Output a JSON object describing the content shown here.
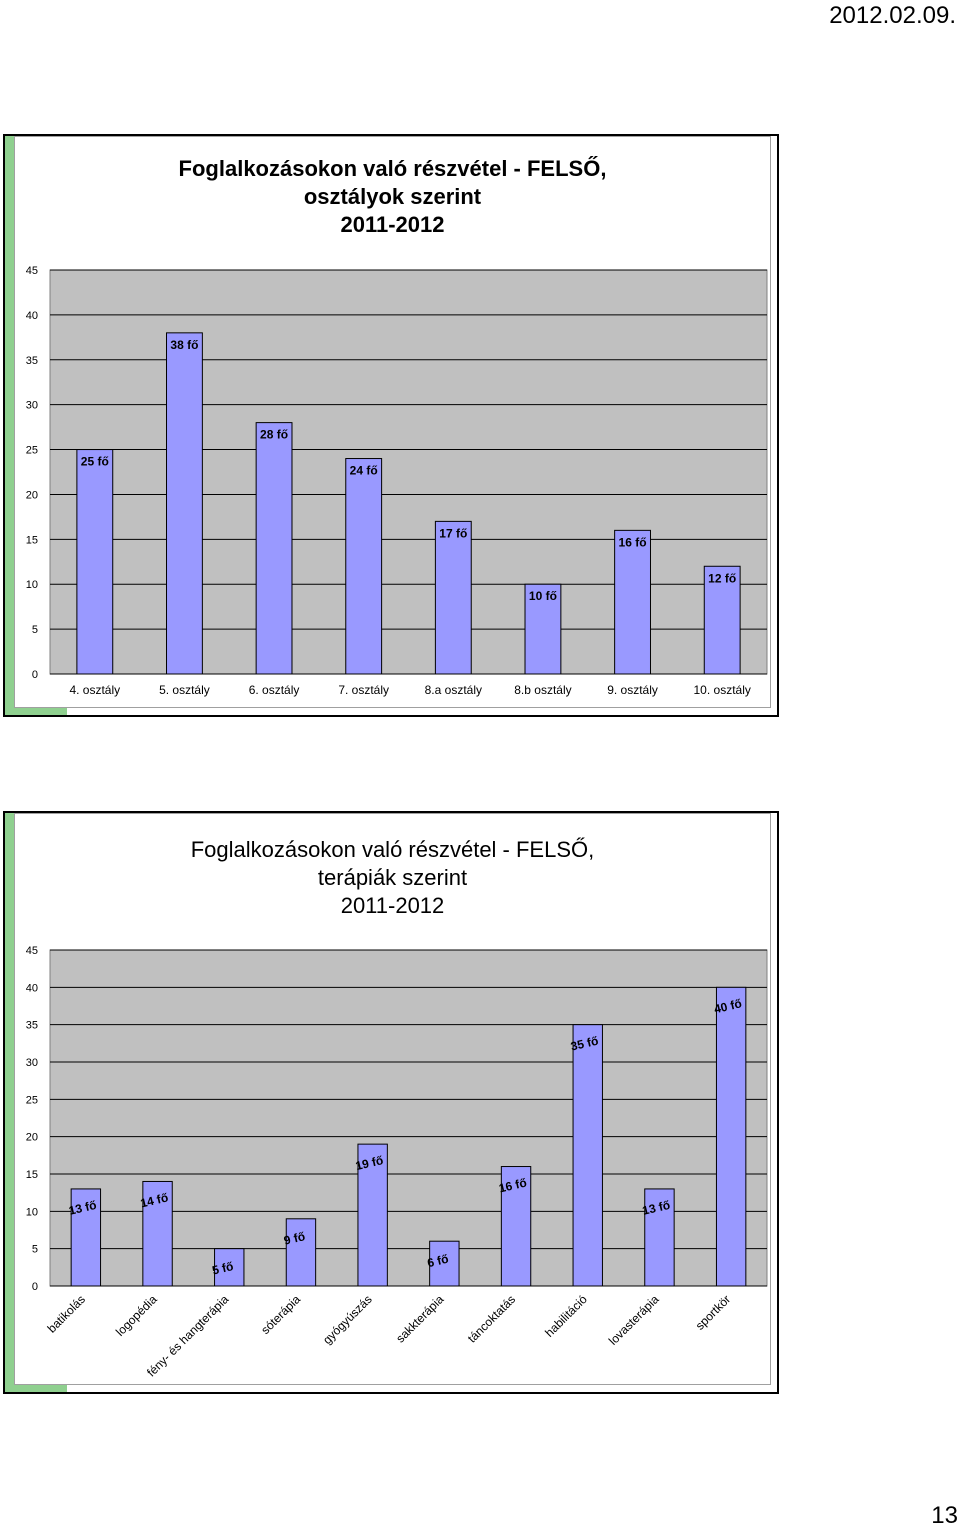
{
  "page": {
    "date": "2012.02.09.",
    "number": "13"
  },
  "chart_data": [
    {
      "type": "bar",
      "title_lines": [
        "Foglalkozásokon való részvétel - FELSŐ,",
        "osztályok szerint",
        "2011-2012"
      ],
      "categories": [
        "4. osztály",
        "5. osztály",
        "6. osztály",
        "7. osztály",
        "8.a osztály",
        "8.b osztály",
        "9. osztály",
        "10. osztály"
      ],
      "values": [
        25,
        38,
        28,
        24,
        17,
        10,
        16,
        12
      ],
      "labels": [
        "25 fő",
        "38 fő",
        "28 fő",
        "24 fő",
        "17 fő",
        "10 fő",
        "16 fő",
        "12 fő"
      ],
      "ylim": [
        0,
        45
      ],
      "yticks": [
        0,
        5,
        10,
        15,
        20,
        25,
        30,
        35,
        40,
        45
      ],
      "grid": true,
      "colors": {
        "bar": "#9999ff",
        "plot_bg": "#c0c0c0",
        "gridline": "#000000"
      }
    },
    {
      "type": "bar",
      "title_lines": [
        "Foglalkozásokon való részvétel - FELSŐ,",
        "terápiák szerint",
        "2011-2012"
      ],
      "categories": [
        "batikolás",
        "logopédia",
        "fény- és hangterápia",
        "sóterápia",
        "gyógyúszás",
        "sakkterápia",
        "táncoktatás",
        "habilitáció",
        "lovasterápia",
        "sportkör"
      ],
      "values": [
        13,
        14,
        5,
        9,
        19,
        6,
        16,
        35,
        13,
        40
      ],
      "labels": [
        "13 fő",
        "14 fő",
        "5 fő",
        "9 fő",
        "19 fő",
        "6 fő",
        "16 fő",
        "35 fő",
        "13 fő",
        "40 fő"
      ],
      "ylim": [
        0,
        45
      ],
      "yticks": [
        0,
        5,
        10,
        15,
        20,
        25,
        30,
        35,
        40,
        45
      ],
      "grid": true,
      "colors": {
        "bar": "#9999ff",
        "plot_bg": "#c0c0c0",
        "gridline": "#000000"
      }
    }
  ]
}
